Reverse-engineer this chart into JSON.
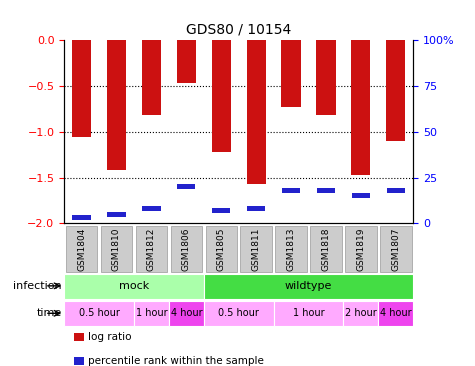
{
  "title": "GDS80 / 10154",
  "samples": [
    "GSM1804",
    "GSM1810",
    "GSM1812",
    "GSM1806",
    "GSM1805",
    "GSM1811",
    "GSM1813",
    "GSM1818",
    "GSM1819",
    "GSM1807"
  ],
  "log_ratios": [
    -1.06,
    -1.42,
    -0.82,
    -0.47,
    -1.22,
    -1.57,
    -0.73,
    -0.82,
    -1.47,
    -1.1
  ],
  "percentile_ranks": [
    3,
    5,
    8,
    20,
    7,
    8,
    18,
    18,
    15,
    18
  ],
  "bar_color": "#cc1111",
  "percentile_color": "#2222cc",
  "ylim_left": [
    -2.0,
    0.0
  ],
  "ylim_right": [
    0,
    100
  ],
  "yticks_left": [
    0.0,
    -0.5,
    -1.0,
    -1.5,
    -2.0
  ],
  "yticks_right": [
    0,
    25,
    50,
    75,
    100
  ],
  "infection_groups": [
    {
      "label": "mock",
      "start": 0,
      "end": 4,
      "color": "#aaffaa"
    },
    {
      "label": "wildtype",
      "start": 4,
      "end": 10,
      "color": "#44dd44"
    }
  ],
  "time_groups": [
    {
      "label": "0.5 hour",
      "start": 0,
      "end": 2,
      "color": "#ffaaff"
    },
    {
      "label": "1 hour",
      "start": 2,
      "end": 3,
      "color": "#ffaaff"
    },
    {
      "label": "4 hour",
      "start": 3,
      "end": 4,
      "color": "#ee44ee"
    },
    {
      "label": "0.5 hour",
      "start": 4,
      "end": 6,
      "color": "#ffaaff"
    },
    {
      "label": "1 hour",
      "start": 6,
      "end": 8,
      "color": "#ffaaff"
    },
    {
      "label": "2 hour",
      "start": 8,
      "end": 9,
      "color": "#ffaaff"
    },
    {
      "label": "4 hour",
      "start": 9,
      "end": 10,
      "color": "#ee44ee"
    }
  ],
  "legend_items": [
    {
      "label": "log ratio",
      "color": "#cc1111"
    },
    {
      "label": "percentile rank within the sample",
      "color": "#2222cc"
    }
  ],
  "infection_label": "infection",
  "time_label": "time",
  "bar_width": 0.55,
  "sample_box_color": "#cccccc",
  "sample_box_edgecolor": "#999999"
}
